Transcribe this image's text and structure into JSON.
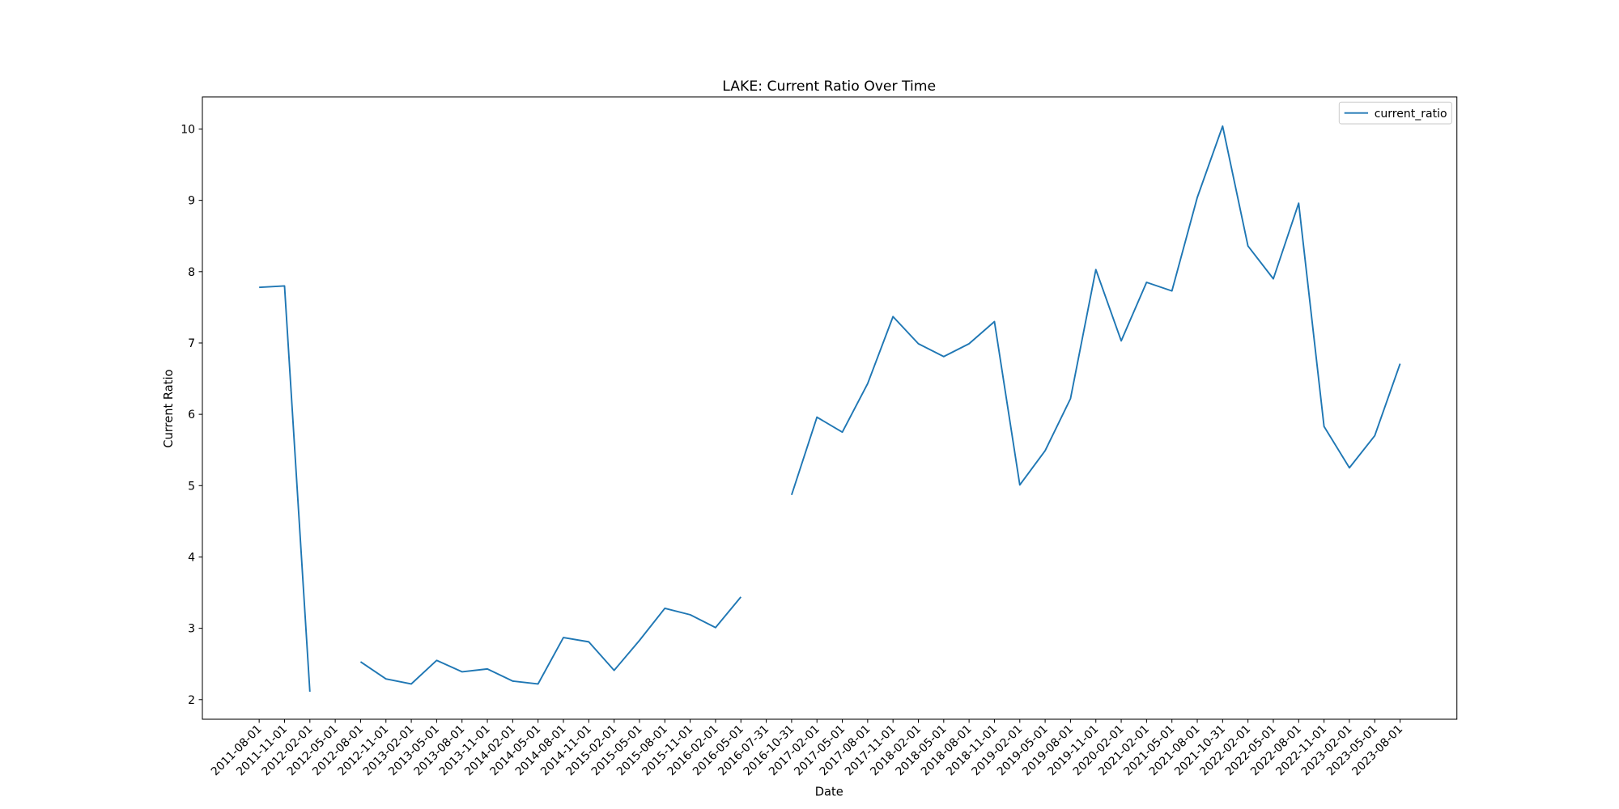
{
  "chart_data": {
    "type": "line",
    "title": "LAKE: Current Ratio Over Time",
    "x_label": "Date",
    "y_label": "Current Ratio",
    "categories": [
      "2011-08-01",
      "2011-11-01",
      "2012-02-01",
      "2012-05-01",
      "2012-08-01",
      "2012-11-01",
      "2013-02-01",
      "2013-05-01",
      "2013-08-01",
      "2013-11-01",
      "2014-02-01",
      "2014-05-01",
      "2014-08-01",
      "2014-11-01",
      "2015-02-01",
      "2015-05-01",
      "2015-08-01",
      "2015-11-01",
      "2016-02-01",
      "2016-05-01",
      "2016-07-31",
      "2016-10-31",
      "2017-02-01",
      "2017-05-01",
      "2017-08-01",
      "2017-11-01",
      "2018-02-01",
      "2018-05-01",
      "2018-08-01",
      "2018-11-01",
      "2019-02-01",
      "2019-05-01",
      "2019-08-01",
      "2019-11-01",
      "2020-02-01",
      "2021-02-01",
      "2021-05-01",
      "2021-08-01",
      "2021-10-31",
      "2022-02-01",
      "2022-05-01",
      "2022-08-01",
      "2022-11-01",
      "2023-02-01",
      "2023-05-01",
      "2023-08-01"
    ],
    "series": [
      {
        "name": "current_ratio",
        "color": "#1f77b4",
        "values": [
          7.78,
          7.8,
          2.11,
          null,
          2.53,
          2.29,
          2.22,
          2.55,
          2.39,
          2.43,
          2.26,
          2.22,
          2.87,
          2.81,
          2.41,
          2.83,
          3.28,
          3.19,
          3.01,
          3.44,
          null,
          4.87,
          5.96,
          5.75,
          6.43,
          7.37,
          6.99,
          6.81,
          6.99,
          7.3,
          5.01,
          5.49,
          6.22,
          8.03,
          7.03,
          7.85,
          7.73,
          9.04,
          10.04,
          8.36,
          7.9,
          8.96,
          5.83,
          5.25,
          5.7,
          6.71
        ]
      }
    ],
    "ylim": [
      1.725,
      10.449
    ],
    "yticks": [
      2,
      3,
      4,
      5,
      6,
      7,
      8,
      9,
      10
    ],
    "legend": "upper right"
  }
}
